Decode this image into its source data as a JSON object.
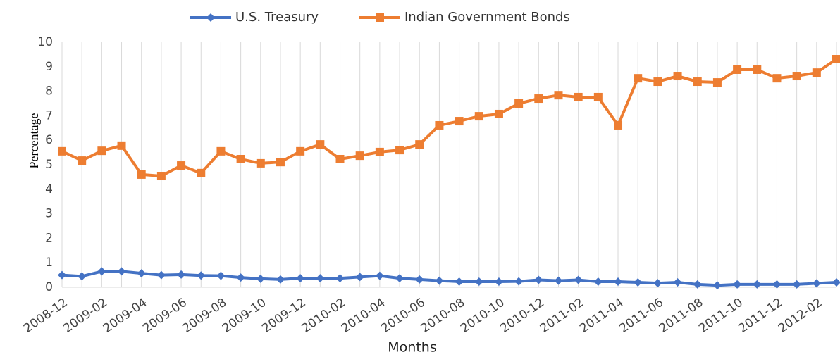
{
  "chart_data": {
    "type": "line",
    "x_label": "Months",
    "y_label": "Percentage",
    "categories": [
      "2008-12",
      null,
      "2009-02",
      null,
      "2009-04",
      null,
      "2009-06",
      null,
      "2009-08",
      null,
      "2009-10",
      null,
      "2009-12",
      null,
      "2010-02",
      null,
      "2010-04",
      null,
      "2010-06",
      null,
      "2010-08",
      null,
      "2010-10",
      null,
      "2010-12",
      null,
      "2011-02",
      null,
      "2011-04",
      null,
      "2011-06",
      null,
      "2011-08",
      null,
      "2011-10",
      null,
      "2011-12",
      null,
      "2012-02",
      null
    ],
    "series": [
      {
        "name": "U.S. Treasury",
        "color": "#4472c4",
        "marker": "diamond",
        "values": [
          0.5,
          0.45,
          0.65,
          0.65,
          0.57,
          0.5,
          0.52,
          0.48,
          0.47,
          0.4,
          0.35,
          0.32,
          0.37,
          0.37,
          0.37,
          0.42,
          0.47,
          0.37,
          0.32,
          0.27,
          0.23,
          0.23,
          0.23,
          0.24,
          0.3,
          0.27,
          0.3,
          0.23,
          0.23,
          0.2,
          0.17,
          0.2,
          0.12,
          0.08,
          0.12,
          0.12,
          0.12,
          0.12,
          0.16,
          0.2
        ]
      },
      {
        "name": "Indian Government Bonds",
        "color": "#ed7d31",
        "marker": "square",
        "values": [
          5.55,
          5.17,
          5.57,
          5.78,
          4.6,
          4.54,
          4.97,
          4.66,
          5.55,
          5.23,
          5.06,
          5.11,
          5.55,
          5.83,
          5.23,
          5.37,
          5.52,
          5.6,
          5.83,
          6.61,
          6.78,
          6.98,
          7.07,
          7.5,
          7.7,
          7.84,
          7.76,
          7.76,
          6.61,
          8.53,
          8.39,
          8.62,
          8.39,
          8.36,
          8.88,
          8.88,
          8.53,
          8.62,
          8.76,
          9.31
        ]
      }
    ],
    "ylim": [
      0,
      10
    ],
    "yticks": [
      0,
      1,
      2,
      3,
      4,
      5,
      6,
      7,
      8,
      9,
      10
    ],
    "grid": "x",
    "legend": "top"
  }
}
